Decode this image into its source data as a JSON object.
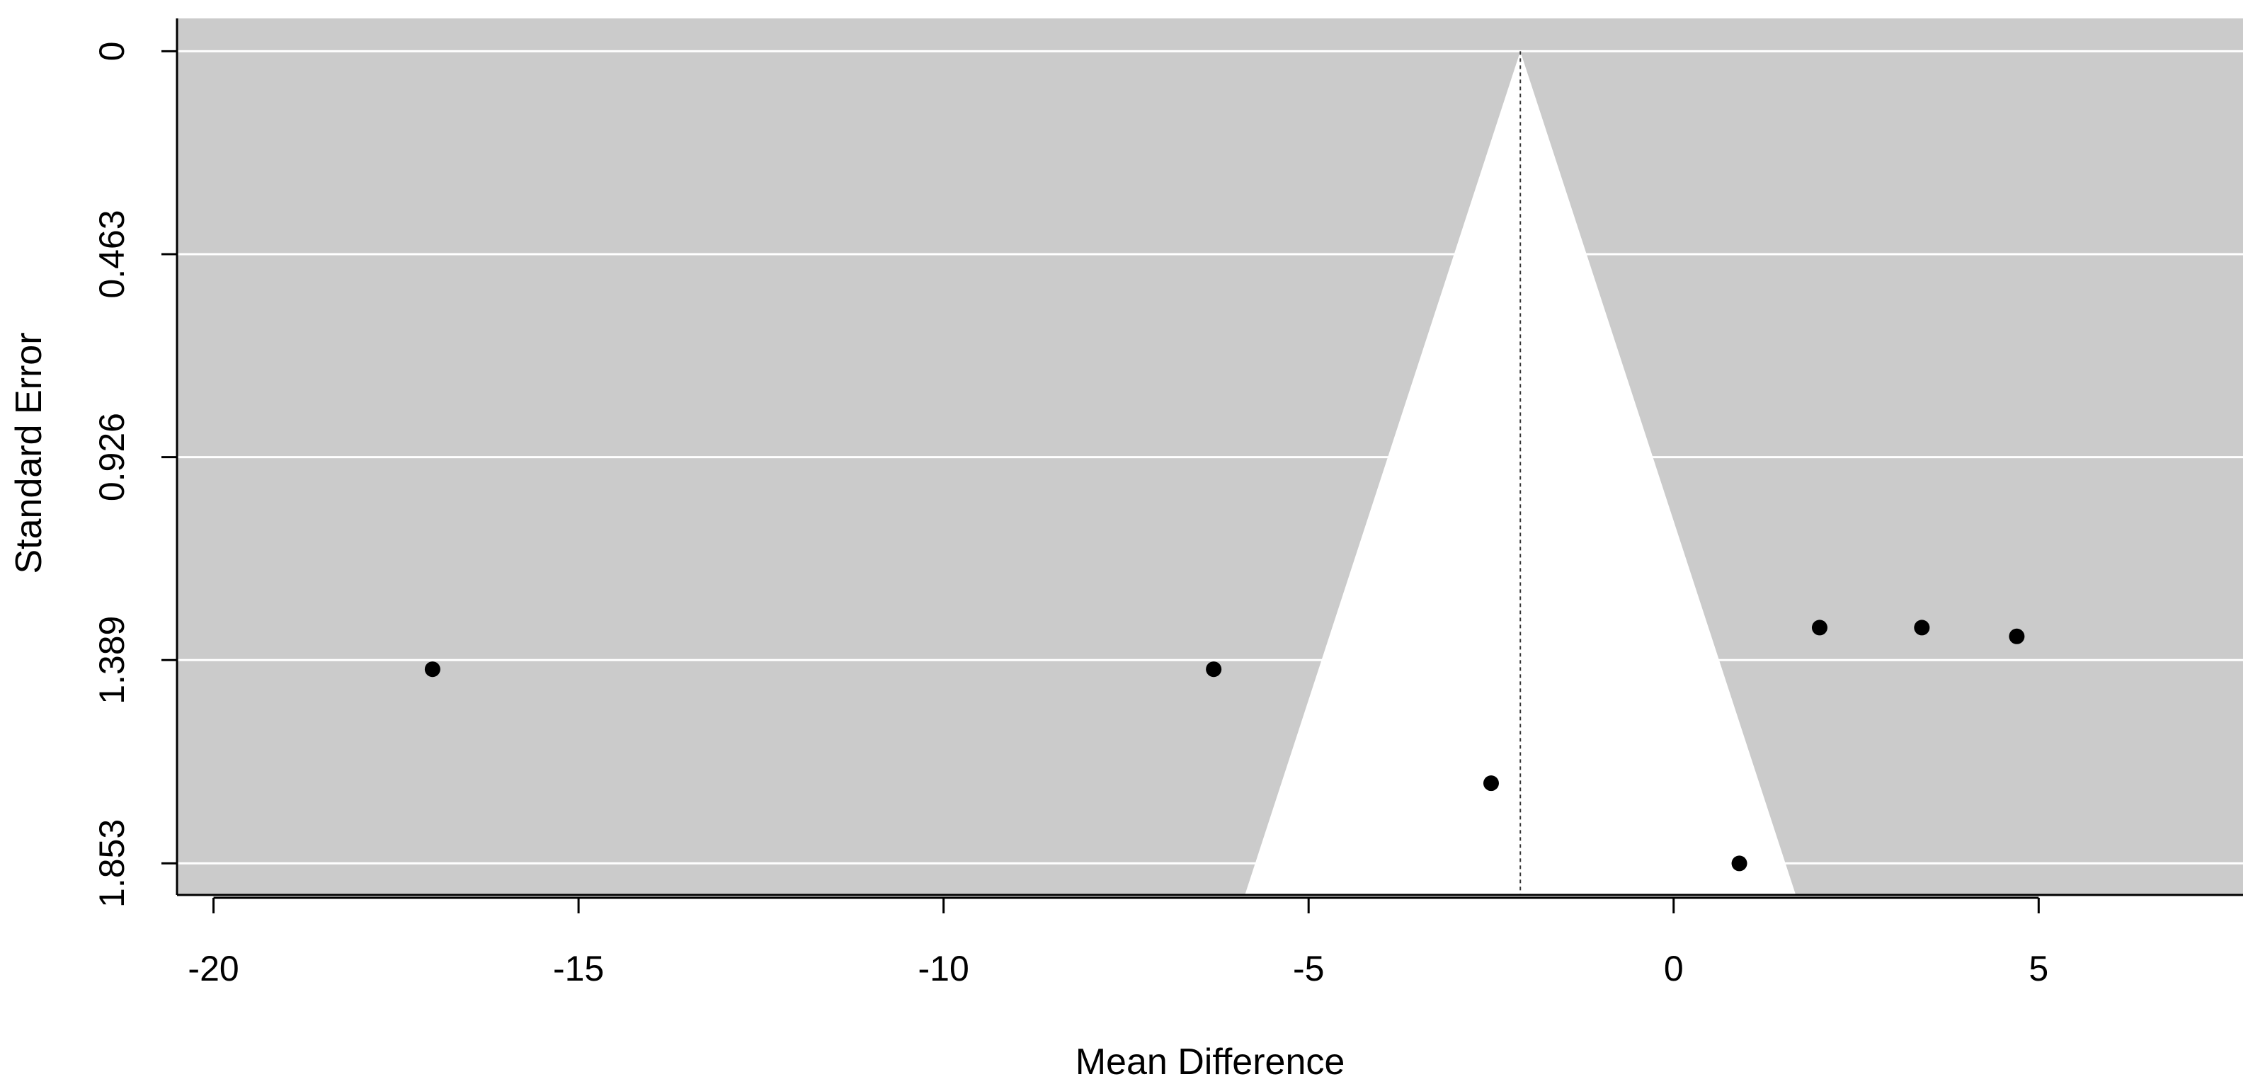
{
  "chart_data": {
    "type": "scatter",
    "subtype": "funnel-plot",
    "title": "",
    "xlabel": "Mean Difference",
    "ylabel": "Standard Error",
    "xlim": [
      -20.5,
      7.8
    ],
    "ylim": [
      1.925,
      -0.075
    ],
    "y_reversed": true,
    "x_ticks": [
      -20,
      -15,
      -10,
      -5,
      0,
      5
    ],
    "x_tick_labels": [
      "-20",
      "-15",
      "-10",
      "-5",
      "0",
      "5"
    ],
    "y_ticks": [
      0,
      0.463,
      0.926,
      1.389,
      1.853
    ],
    "y_tick_labels": [
      "0",
      "0.463",
      "0.926",
      "1.389",
      "1.853"
    ],
    "grid": "horizontal",
    "colors": {
      "panel_background": "#cbcbcb",
      "funnel_fill": "#ffffff",
      "gridline": "#ffffff",
      "points": "#000000",
      "axis": "#000000"
    },
    "funnel": {
      "center": -2.1,
      "multiplier": 1.96,
      "se_max": 1.925
    },
    "points": [
      {
        "x": -17.0,
        "y": 1.41
      },
      {
        "x": -6.3,
        "y": 1.41
      },
      {
        "x": -2.5,
        "y": 1.67
      },
      {
        "x": 0.9,
        "y": 1.853
      },
      {
        "x": 2.0,
        "y": 1.315
      },
      {
        "x": 3.4,
        "y": 1.315
      },
      {
        "x": 4.7,
        "y": 1.335
      }
    ]
  }
}
